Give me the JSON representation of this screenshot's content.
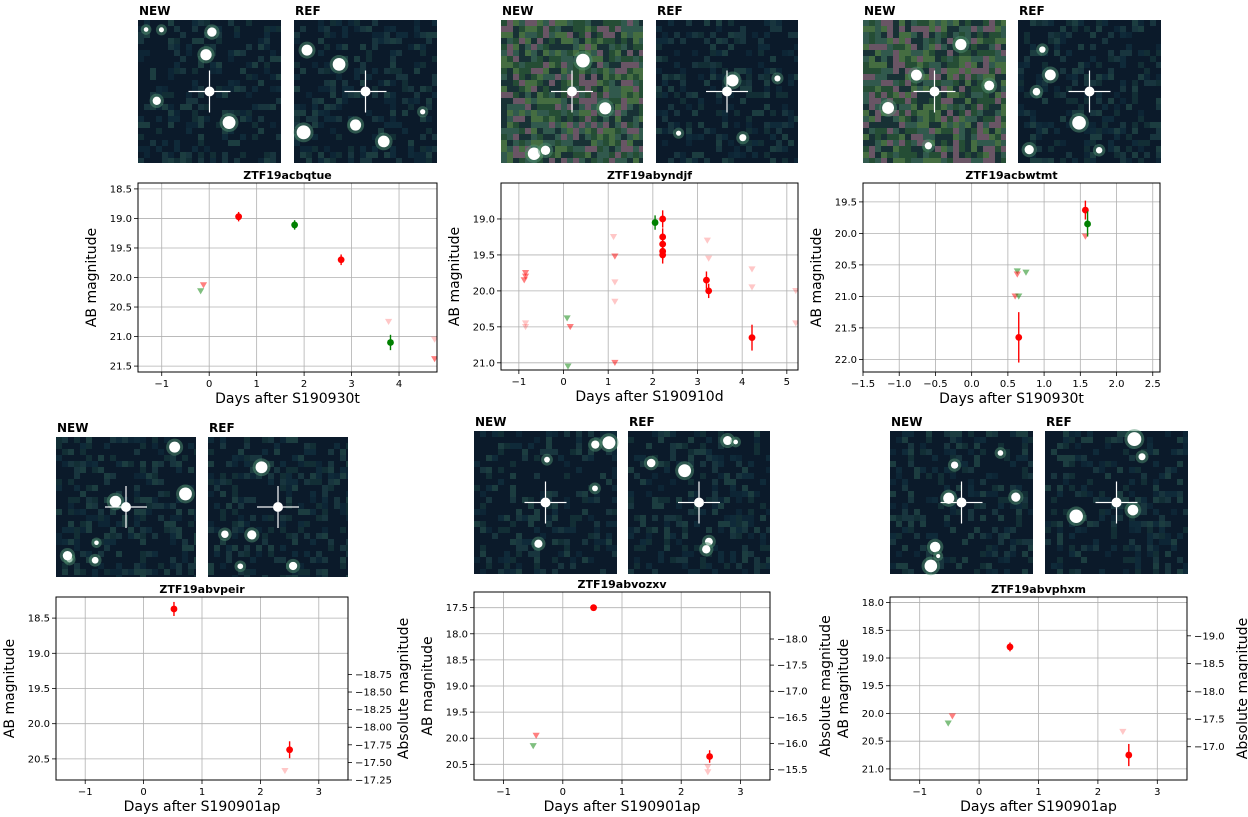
{
  "figure": {
    "stamp_labels": {
      "new": "NEW",
      "ref": "REF"
    },
    "colors": {
      "r_band": "#ff0000",
      "g_band": "#008000",
      "grid": "#b0b0b0",
      "stamp_bg": "#0b1a2a",
      "crosshair": "#ffffff"
    }
  },
  "chart_data": [
    {
      "type": "scatter",
      "title": "ZTF19acbqtue",
      "xlabel": "Days after S190930t",
      "ylabel": "AB magnitude",
      "y_inverted": true,
      "grid": true,
      "xlim": [
        -1.5,
        4.8
      ],
      "ylim": [
        21.6,
        18.4
      ],
      "xticks": [
        -1,
        0,
        1,
        2,
        3,
        4
      ],
      "yticks": [
        18.5,
        19.0,
        19.5,
        20.0,
        20.5,
        21.0,
        21.5
      ],
      "detections": [
        {
          "band": "r",
          "x": 0.62,
          "y": 18.97,
          "err": 0.08
        },
        {
          "band": "g",
          "x": 1.8,
          "y": 19.11,
          "err": 0.08
        },
        {
          "band": "r",
          "x": 2.78,
          "y": 19.7,
          "err": 0.09
        },
        {
          "band": "g",
          "x": 3.82,
          "y": 21.1,
          "err": 0.13
        }
      ],
      "upper_limits": [
        {
          "band": "r",
          "x": -0.12,
          "y": 20.13
        },
        {
          "band": "g",
          "x": -0.18,
          "y": 20.23
        },
        {
          "band": "r",
          "x": 3.78,
          "y": 20.75,
          "faint": true
        },
        {
          "band": "r",
          "x": 4.75,
          "y": 21.05,
          "faint": true
        },
        {
          "band": "r",
          "x": 4.75,
          "y": 21.38
        }
      ]
    },
    {
      "type": "scatter",
      "title": "ZTF19abyndjf",
      "xlabel": "Days after S190910d",
      "ylabel": "AB magnitude",
      "y_inverted": true,
      "grid": true,
      "xlim": [
        -1.4,
        5.25
      ],
      "ylim": [
        21.1,
        18.5
      ],
      "xticks": [
        -1,
        0,
        1,
        2,
        3,
        4,
        5
      ],
      "yticks": [
        19.0,
        19.5,
        20.0,
        20.5,
        21.0
      ],
      "detections": [
        {
          "band": "g",
          "x": 2.05,
          "y": 19.05,
          "err": 0.1
        },
        {
          "band": "r",
          "x": 2.22,
          "y": 19.0,
          "err": 0.12
        },
        {
          "band": "r",
          "x": 2.22,
          "y": 19.25,
          "err": 0.12
        },
        {
          "band": "r",
          "x": 2.22,
          "y": 19.35,
          "err": 0.12
        },
        {
          "band": "r",
          "x": 2.22,
          "y": 19.45,
          "err": 0.12
        },
        {
          "band": "r",
          "x": 2.22,
          "y": 19.5,
          "err": 0.12
        },
        {
          "band": "r",
          "x": 3.2,
          "y": 19.85,
          "err": 0.12
        },
        {
          "band": "r",
          "x": 3.25,
          "y": 20.0,
          "err": 0.1
        },
        {
          "band": "r",
          "x": 4.22,
          "y": 20.65,
          "err": 0.18
        }
      ],
      "upper_limits": [
        {
          "band": "r",
          "x": -0.85,
          "y": 19.75
        },
        {
          "band": "r",
          "x": -0.85,
          "y": 19.8
        },
        {
          "band": "r",
          "x": -0.88,
          "y": 19.85
        },
        {
          "band": "r",
          "x": -0.85,
          "y": 20.45,
          "faint": true
        },
        {
          "band": "r",
          "x": -0.85,
          "y": 20.5,
          "faint": true
        },
        {
          "band": "g",
          "x": 0.08,
          "y": 20.38
        },
        {
          "band": "r",
          "x": 0.15,
          "y": 20.5
        },
        {
          "band": "g",
          "x": 0.1,
          "y": 21.05
        },
        {
          "band": "r",
          "x": 1.12,
          "y": 19.25,
          "faint": true
        },
        {
          "band": "r",
          "x": 1.15,
          "y": 19.52
        },
        {
          "band": "r",
          "x": 1.15,
          "y": 19.88,
          "faint": true
        },
        {
          "band": "r",
          "x": 1.15,
          "y": 20.15,
          "faint": true
        },
        {
          "band": "r",
          "x": 1.15,
          "y": 21.0
        },
        {
          "band": "r",
          "x": 3.22,
          "y": 19.3,
          "faint": true
        },
        {
          "band": "r",
          "x": 3.25,
          "y": 19.55,
          "faint": true
        },
        {
          "band": "r",
          "x": 4.22,
          "y": 19.7,
          "faint": true
        },
        {
          "band": "r",
          "x": 4.22,
          "y": 19.95,
          "faint": true
        },
        {
          "band": "r",
          "x": 5.2,
          "y": 20.0,
          "faint": true
        },
        {
          "band": "r",
          "x": 5.2,
          "y": 20.45,
          "faint": true
        }
      ]
    },
    {
      "type": "scatter",
      "title": "ZTF19acbwtmt",
      "xlabel": "Days after S190930t",
      "ylabel": "AB magnitude",
      "y_inverted": true,
      "grid": true,
      "xlim": [
        -1.5,
        2.6
      ],
      "ylim": [
        22.2,
        19.2
      ],
      "xticks": [
        -1.5,
        -1.0,
        -0.5,
        0.0,
        0.5,
        1.0,
        1.5,
        2.0,
        2.5
      ],
      "yticks": [
        19.5,
        20.0,
        20.5,
        21.0,
        21.5,
        22.0
      ],
      "detections": [
        {
          "band": "r",
          "x": 0.65,
          "y": 21.65,
          "err": 0.4
        },
        {
          "band": "r",
          "x": 1.57,
          "y": 19.63,
          "err": 0.15
        },
        {
          "band": "g",
          "x": 1.6,
          "y": 19.85,
          "err": 0.2
        }
      ],
      "upper_limits": [
        {
          "band": "g",
          "x": 0.63,
          "y": 20.6
        },
        {
          "band": "r",
          "x": 0.63,
          "y": 20.65
        },
        {
          "band": "g",
          "x": 0.75,
          "y": 20.62
        },
        {
          "band": "r",
          "x": 0.6,
          "y": 21.0
        },
        {
          "band": "g",
          "x": 0.65,
          "y": 21.0
        },
        {
          "band": "r",
          "x": 1.57,
          "y": 20.05
        }
      ]
    },
    {
      "type": "scatter",
      "title": "ZTF19abvpeir",
      "xlabel": "Days after S190901ap",
      "ylabel": "AB magnitude",
      "ylabel_right": "Absolute magnitude",
      "y_inverted": true,
      "grid": true,
      "xlim": [
        -1.5,
        3.5
      ],
      "ylim": [
        20.8,
        18.2
      ],
      "xticks": [
        -1,
        0,
        1,
        2,
        3
      ],
      "yticks": [
        18.5,
        19.0,
        19.5,
        20.0,
        20.5
      ],
      "yticks_right": [
        -18.75,
        -18.5,
        -18.25,
        -18.0,
        -17.75,
        -17.5,
        -17.25
      ],
      "absolute_offset": 38.05,
      "detections": [
        {
          "band": "r",
          "x": 0.52,
          "y": 18.37,
          "err": 0.1
        },
        {
          "band": "r",
          "x": 2.5,
          "y": 20.37,
          "err": 0.12
        }
      ],
      "upper_limits": [
        {
          "band": "r",
          "x": 2.42,
          "y": 20.67,
          "faint": true
        }
      ]
    },
    {
      "type": "scatter",
      "title": "ZTF19abvozxv",
      "xlabel": "Days after S190901ap",
      "ylabel": "AB magnitude",
      "ylabel_right": "Absolute magnitude",
      "y_inverted": true,
      "grid": true,
      "xlim": [
        -1.5,
        3.5
      ],
      "ylim": [
        20.8,
        17.2
      ],
      "xticks": [
        -1,
        0,
        1,
        2,
        3
      ],
      "yticks": [
        17.5,
        18.0,
        18.5,
        19.0,
        19.5,
        20.0,
        20.5
      ],
      "yticks_right": [
        -18.0,
        -17.5,
        -17.0,
        -16.5,
        -16.0,
        -15.5
      ],
      "absolute_offset": 36.1,
      "detections": [
        {
          "band": "r",
          "x": 0.52,
          "y": 17.5,
          "err": 0.05
        },
        {
          "band": "r",
          "x": 2.48,
          "y": 20.35,
          "err": 0.12
        }
      ],
      "upper_limits": [
        {
          "band": "r",
          "x": -0.45,
          "y": 19.95
        },
        {
          "band": "g",
          "x": -0.5,
          "y": 20.15
        },
        {
          "band": "r",
          "x": 2.45,
          "y": 20.55,
          "faint": true
        },
        {
          "band": "r",
          "x": 2.45,
          "y": 20.65,
          "faint": true
        }
      ]
    },
    {
      "type": "scatter",
      "title": "ZTF19abvphxm",
      "xlabel": "Days after S190901ap",
      "ylabel": "AB magnitude",
      "ylabel_right": "Absolute magnitude",
      "y_inverted": true,
      "grid": true,
      "xlim": [
        -1.5,
        3.5
      ],
      "ylim": [
        21.2,
        17.9
      ],
      "xticks": [
        -1,
        0,
        1,
        2,
        3
      ],
      "yticks": [
        18.0,
        18.5,
        19.0,
        19.5,
        20.0,
        20.5,
        21.0
      ],
      "yticks_right": [
        -19.0,
        -18.5,
        -18.0,
        -17.5,
        -17.0
      ],
      "absolute_offset": 37.6,
      "detections": [
        {
          "band": "r",
          "x": 0.52,
          "y": 18.8,
          "err": 0.08
        },
        {
          "band": "r",
          "x": 2.52,
          "y": 20.75,
          "err": 0.2
        }
      ],
      "upper_limits": [
        {
          "band": "r",
          "x": -0.45,
          "y": 20.05
        },
        {
          "band": "g",
          "x": -0.52,
          "y": 20.18
        },
        {
          "band": "r",
          "x": 2.42,
          "y": 20.33,
          "faint": true
        }
      ]
    }
  ]
}
